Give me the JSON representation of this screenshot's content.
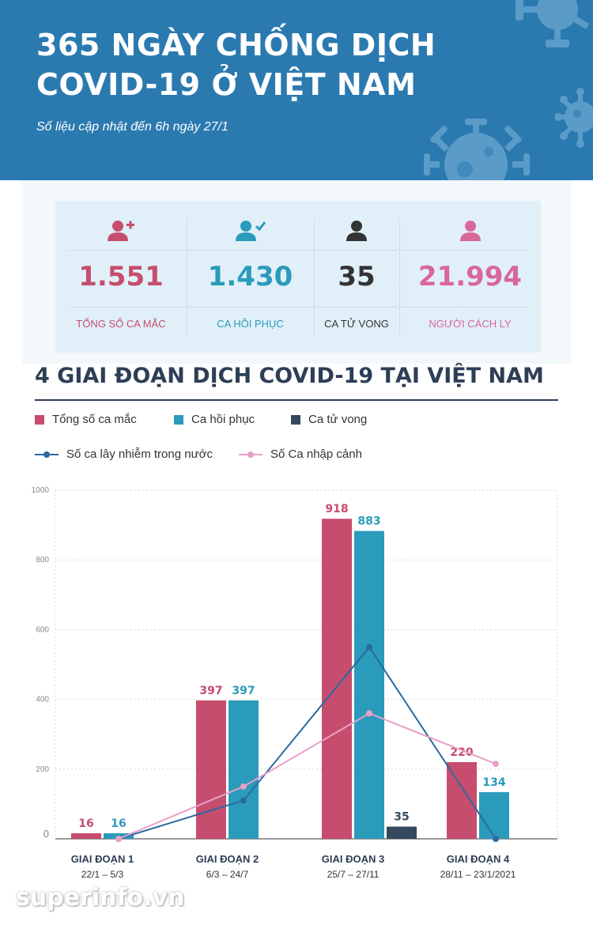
{
  "header": {
    "title_line1": "365 NGÀY CHỐNG DỊCH",
    "title_line2": "COVID-19 Ở VIỆT NAM",
    "subtitle": "Số liệu cập nhật đến 6h ngày 27/1",
    "background_color": "#2a7ab0"
  },
  "stats": [
    {
      "value": "1.551",
      "label": "TỔNG SỐ CA MẮC",
      "color": "#c64d6e",
      "icon": "person-plus-icon"
    },
    {
      "value": "1.430",
      "label": "CA HỒI PHỤC",
      "color": "#2b9bbb",
      "icon": "person-check-icon"
    },
    {
      "value": "35",
      "label": "CA TỬ VONG",
      "color": "#333333",
      "icon": "person-icon"
    },
    {
      "value": "21.994",
      "label": "NGƯỜI CÁCH LY",
      "color": "#d9679a",
      "icon": "person-icon"
    }
  ],
  "section_title": "4 GIAI ĐOẠN DỊCH COVID-19 TẠI VIỆT NAM",
  "watermark": "superinfo.vn",
  "chart_data": {
    "type": "bar",
    "categories": [
      "GIAI ĐOẠN 1",
      "GIAI ĐOẠN 2",
      "GIAI ĐOẠN 3",
      "GIAI ĐOẠN 4"
    ],
    "category_dates": [
      "22/1 – 5/3",
      "6/3 – 24/7",
      "25/7 – 27/11",
      "28/11 – 23/1/2021"
    ],
    "series": [
      {
        "name": "Tổng số ca mắc",
        "type": "bar",
        "color": "#c64d6e",
        "values": [
          16,
          397,
          918,
          220
        ],
        "labels": [
          "16",
          "397",
          "918",
          "220"
        ]
      },
      {
        "name": "Ca hồi phục",
        "type": "bar",
        "color": "#2b9bbb",
        "values": [
          16,
          397,
          883,
          134
        ],
        "labels": [
          "16",
          "397",
          "883",
          "134"
        ]
      },
      {
        "name": "Ca tử vong",
        "type": "bar",
        "color": "#34495e",
        "values": [
          null,
          null,
          35,
          null
        ],
        "labels": [
          "",
          "",
          "35",
          ""
        ]
      },
      {
        "name": "Số ca lây nhiễm trong nước",
        "type": "line",
        "color": "#2a6aa0",
        "values": [
          0,
          110,
          550,
          0
        ]
      },
      {
        "name": "Số Ca nhập cảnh",
        "type": "line",
        "color": "#e8a0c8",
        "values": [
          0,
          150,
          360,
          215
        ]
      }
    ],
    "y_ticks": [
      "0",
      "200",
      "400",
      "600",
      "800",
      "1000"
    ],
    "ylim": [
      0,
      1000
    ],
    "grid": true,
    "legend_position": "top"
  }
}
